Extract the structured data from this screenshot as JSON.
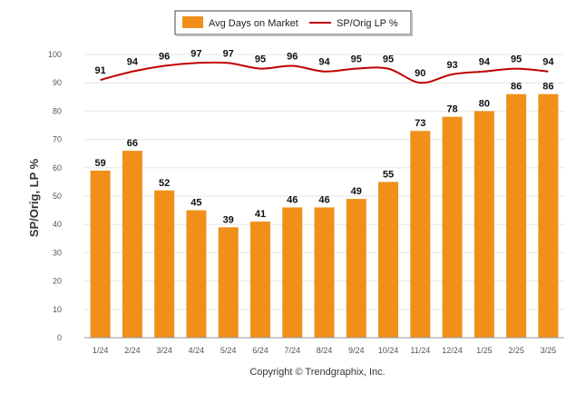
{
  "chart_data": {
    "type": "bar",
    "categories": [
      "1/24",
      "2/24",
      "3/24",
      "4/24",
      "5/24",
      "6/24",
      "7/24",
      "8/24",
      "9/24",
      "10/24",
      "11/24",
      "12/24",
      "1/25",
      "2/25",
      "3/25"
    ],
    "series": [
      {
        "name": "Avg Days on Market",
        "type": "bar",
        "color": "#f0901a",
        "values": [
          59,
          66,
          52,
          45,
          39,
          41,
          46,
          46,
          49,
          55,
          73,
          78,
          80,
          86,
          86
        ]
      },
      {
        "name": "SP/Orig LP %",
        "type": "line",
        "color": "#c00000",
        "values": [
          91,
          94,
          96,
          97,
          97,
          95,
          96,
          94,
          95,
          95,
          90,
          93,
          94,
          95,
          94
        ]
      }
    ],
    "ylabel": "SP/Orig, LP %",
    "ylim": [
      0,
      100
    ],
    "yticks": [
      0,
      10,
      20,
      30,
      40,
      50,
      60,
      70,
      80,
      90,
      100
    ],
    "grid": true,
    "legend_position": "top-center"
  },
  "footer": {
    "copyright": "Copyright © Trendgraphix, Inc."
  }
}
